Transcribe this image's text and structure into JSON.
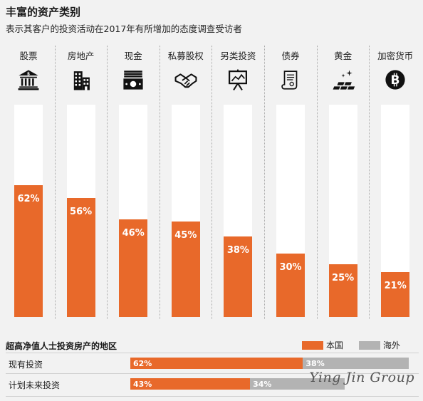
{
  "chart_data": [
    {
      "type": "bar",
      "title": "丰富的资产类别",
      "subtitle": "表示其客户的投资活动在2017年有所增加的态度调查受访者",
      "categories": [
        "股票",
        "房地产",
        "现金",
        "私募股权",
        "另类投资",
        "债券",
        "黄金",
        "加密货币"
      ],
      "values": [
        62,
        56,
        46,
        45,
        38,
        30,
        25,
        21
      ],
      "value_labels": [
        "62%",
        "56%",
        "46%",
        "45%",
        "38%",
        "30%",
        "25%",
        "21%"
      ],
      "ylim": [
        0,
        100
      ],
      "icons": [
        "bank-icon",
        "building-icon",
        "cash-icon",
        "handshake-icon",
        "easel-icon",
        "scroll-icon",
        "gold-bars-icon",
        "bitcoin-icon"
      ],
      "colors": {
        "bar": "#e8692a",
        "track": "#ffffff"
      }
    },
    {
      "type": "bar",
      "title": "超高净值人士投资房产的地区",
      "orientation": "horizontal-stacked",
      "categories": [
        "现有投资",
        "计划未来投资"
      ],
      "series": [
        {
          "name": "本国",
          "values": [
            62,
            43
          ],
          "labels": [
            "62%",
            "43%"
          ],
          "color": "#e8692a"
        },
        {
          "name": "海外",
          "values": [
            38,
            34
          ],
          "labels": [
            "38%",
            "34%"
          ],
          "color": "#b3b3b3"
        }
      ],
      "xlim": [
        0,
        100
      ],
      "legend": "top-right"
    }
  ],
  "watermark": "Ying Jin Group"
}
